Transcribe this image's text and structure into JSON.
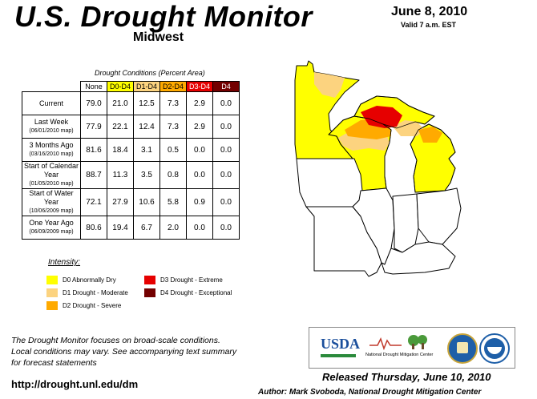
{
  "header": {
    "title": "U.S. Drought Monitor",
    "region": "Midwest",
    "date": "June 8, 2010",
    "valid": "Valid 7 a.m. EST"
  },
  "table": {
    "caption": "Drought Conditions (Percent Area)",
    "columns": [
      "None",
      "D0-D4",
      "D1-D4",
      "D2-D4",
      "D3-D4",
      "D4"
    ],
    "column_colors": [
      "#ffffff",
      "#ffff00",
      "#fcd37f",
      "#ffaa00",
      "#e60000",
      "#730000"
    ],
    "rows": [
      {
        "label": "Current",
        "sub": "",
        "values": [
          "79.0",
          "21.0",
          "12.5",
          "7.3",
          "2.9",
          "0.0"
        ]
      },
      {
        "label": "Last Week",
        "sub": "(06/01/2010 map)",
        "values": [
          "77.9",
          "22.1",
          "12.4",
          "7.3",
          "2.9",
          "0.0"
        ]
      },
      {
        "label": "3 Months Ago",
        "sub": "(03/16/2010 map)",
        "values": [
          "81.6",
          "18.4",
          "3.1",
          "0.5",
          "0.0",
          "0.0"
        ]
      },
      {
        "label": "Start of Calendar Year",
        "sub": "(01/05/2010 map)",
        "values": [
          "88.7",
          "11.3",
          "3.5",
          "0.8",
          "0.0",
          "0.0"
        ]
      },
      {
        "label": "Start of Water Year",
        "sub": "(10/06/2009 map)",
        "values": [
          "72.1",
          "27.9",
          "10.6",
          "5.8",
          "0.9",
          "0.0"
        ]
      },
      {
        "label": "One Year Ago",
        "sub": "(06/09/2009 map)",
        "values": [
          "80.6",
          "19.4",
          "6.7",
          "2.0",
          "0.0",
          "0.0"
        ]
      }
    ]
  },
  "legend": {
    "title": "Intensity:",
    "items": [
      {
        "label": "D0 Abnormally Dry",
        "color": "#ffff00"
      },
      {
        "label": "D1 Drought - Moderate",
        "color": "#fcd37f"
      },
      {
        "label": "D2 Drought - Severe",
        "color": "#ffaa00"
      },
      {
        "label": "D3 Drought - Extreme",
        "color": "#e60000"
      },
      {
        "label": "D4 Drought - Exceptional",
        "color": "#730000"
      }
    ]
  },
  "footer": {
    "blurb_1": "The Drought Monitor focuses on broad-scale conditions.",
    "blurb_2": "Local conditions may vary. See accompanying text summary",
    "blurb_3": "for forecast statements",
    "url": "http://drought.unl.edu/dm",
    "released": "Released Thursday, June 10, 2010",
    "author": "Author: Mark Svoboda, National Drought Mitigation Center"
  },
  "logos": {
    "usda": "USDA",
    "ndmc": "National Drought Mitigation Center"
  }
}
